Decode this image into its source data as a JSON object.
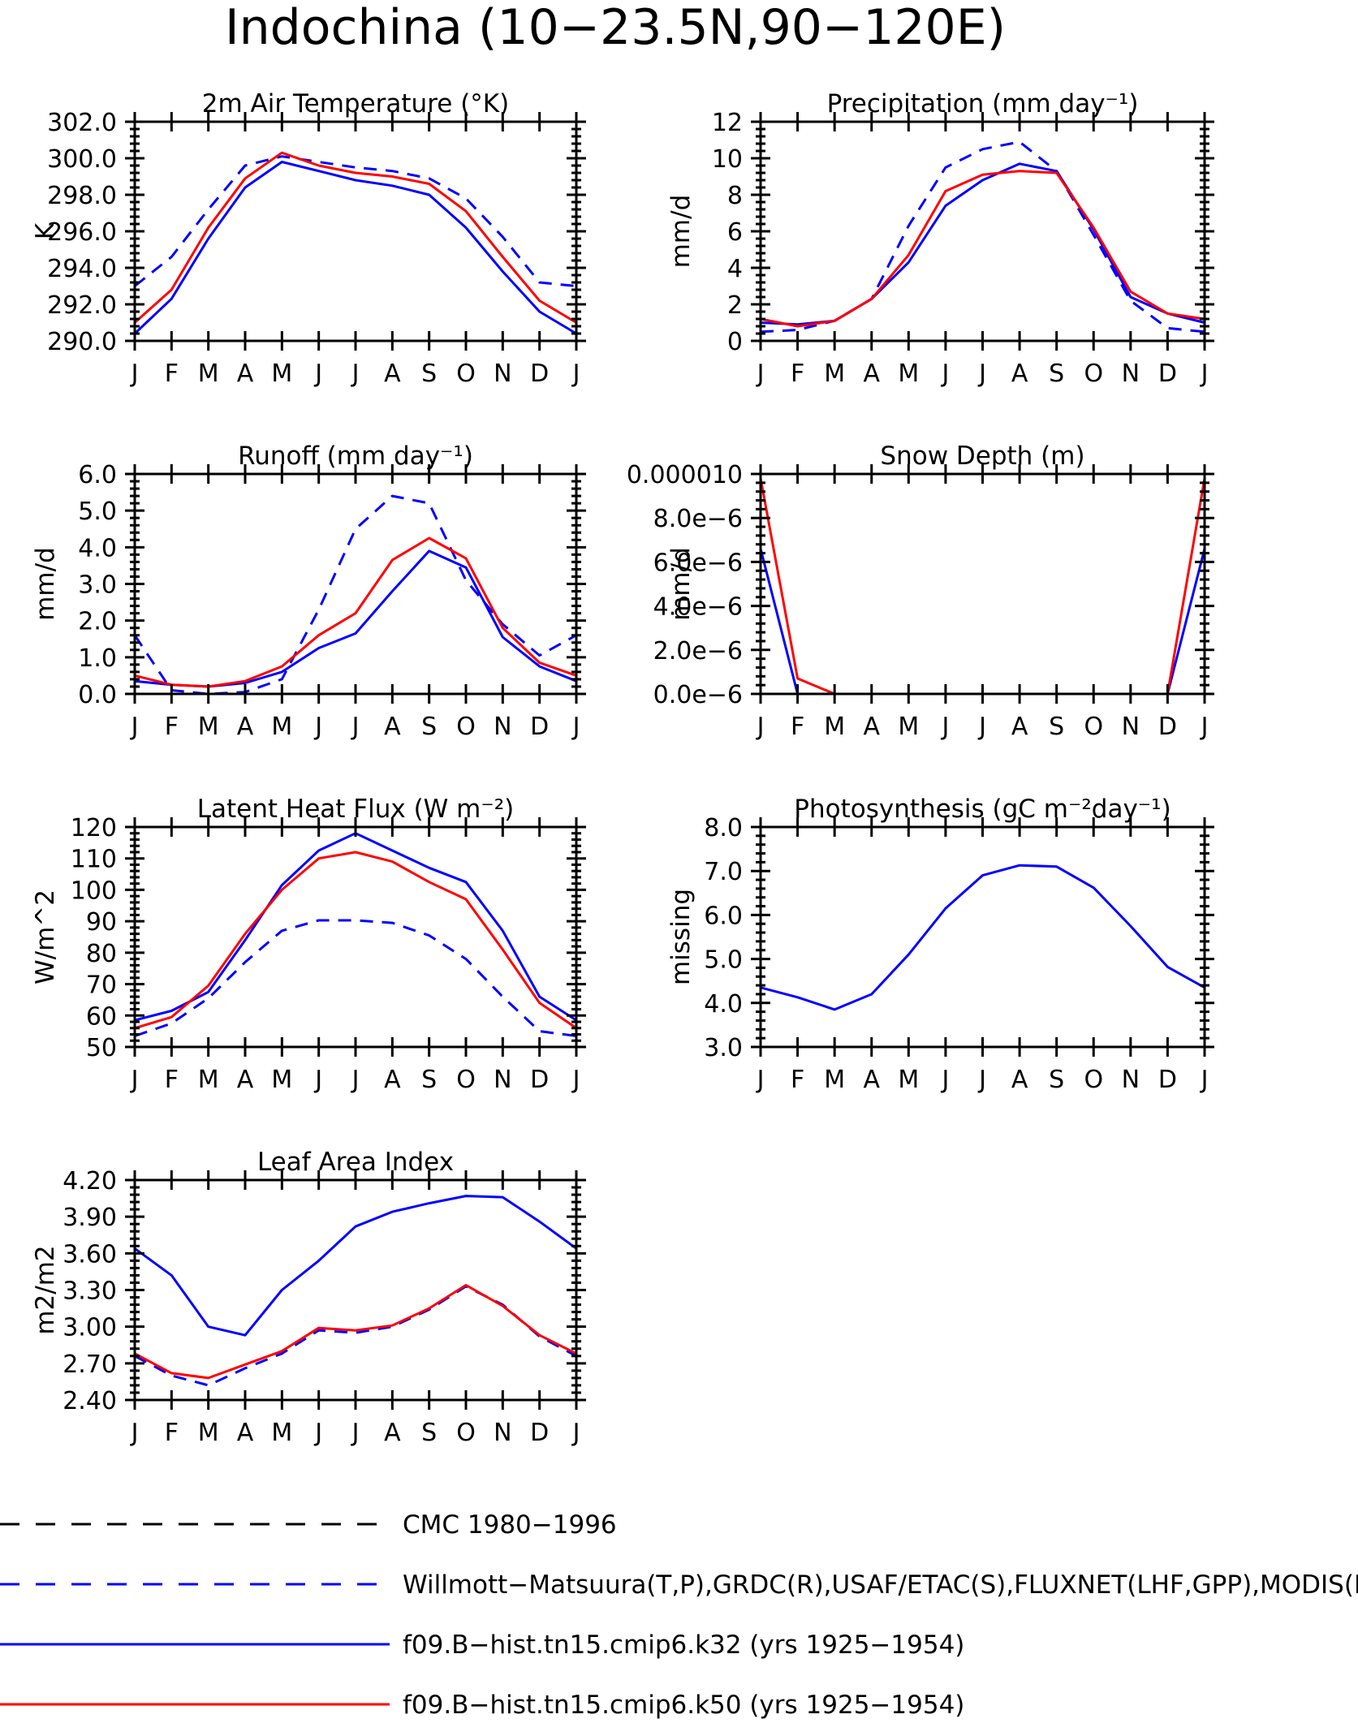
{
  "figure": {
    "title": "Indochina (10−23.5N,90−120E)"
  },
  "styles": {
    "series_colors": {
      "obs": "#0000ff",
      "k32": "#0000ff",
      "k50": "#ff0000",
      "cmc": "#000000"
    },
    "series_dash": {
      "obs": "dash",
      "k32": "solid",
      "k50": "solid",
      "cmc": "dash"
    }
  },
  "legend": {
    "items": [
      {
        "key": "cmc",
        "label": "CMC 1980−1996"
      },
      {
        "key": "obs",
        "label": "Willmott−Matsuura(T,P),GRDC(R),USAF/ETAC(S),FLUXNET(LHF,GPP),MODIS(L"
      },
      {
        "key": "k32",
        "label": "f09.B−hist.tn15.cmip6.k32 (yrs 1925−1954)"
      },
      {
        "key": "k50",
        "label": "f09.B−hist.tn15.cmip6.k50 (yrs 1925−1954)"
      }
    ]
  },
  "chart_data": [
    {
      "type": "line",
      "title": "2m Air Temperature (°K)",
      "ylabel": "K",
      "ylim": [
        290,
        302
      ],
      "yticks": [
        290,
        292,
        294,
        296,
        298,
        300,
        302
      ],
      "ytick_labels": [
        "290.0",
        "292.0",
        "294.0",
        "296.0",
        "298.0",
        "300.0",
        "302.0"
      ],
      "categories": [
        "J",
        "F",
        "M",
        "A",
        "M",
        "J",
        "J",
        "A",
        "S",
        "O",
        "N",
        "D",
        "J"
      ],
      "series": [
        {
          "key": "obs",
          "values": [
            293.0,
            294.6,
            297.2,
            299.6,
            300.1,
            299.8,
            299.5,
            299.3,
            298.9,
            297.8,
            295.7,
            293.2,
            293.0
          ]
        },
        {
          "key": "k32",
          "values": [
            290.4,
            292.3,
            295.6,
            298.4,
            299.8,
            299.3,
            298.8,
            298.5,
            298.0,
            296.2,
            293.8,
            291.6,
            290.4
          ]
        },
        {
          "key": "k50",
          "values": [
            291.0,
            292.8,
            296.2,
            298.9,
            300.3,
            299.6,
            299.2,
            299.0,
            298.6,
            297.1,
            294.6,
            292.2,
            291.0
          ]
        }
      ]
    },
    {
      "type": "line",
      "title": "Precipitation (mm day⁻¹)",
      "ylabel": "mm/d",
      "ylim": [
        0,
        12
      ],
      "yticks": [
        0,
        2,
        4,
        6,
        8,
        10,
        12
      ],
      "ytick_labels": [
        "0",
        "2",
        "4",
        "6",
        "8",
        "10",
        "12"
      ],
      "categories": [
        "J",
        "F",
        "M",
        "A",
        "M",
        "J",
        "J",
        "A",
        "S",
        "O",
        "N",
        "D",
        "J"
      ],
      "series": [
        {
          "key": "obs",
          "values": [
            0.5,
            0.6,
            1.1,
            2.3,
            6.3,
            9.5,
            10.5,
            10.9,
            9.3,
            5.8,
            2.2,
            0.7,
            0.5
          ]
        },
        {
          "key": "k32",
          "values": [
            1.0,
            0.9,
            1.1,
            2.3,
            4.3,
            7.4,
            8.8,
            9.7,
            9.3,
            6.1,
            2.4,
            1.5,
            1.0
          ]
        },
        {
          "key": "k50",
          "values": [
            1.2,
            0.8,
            1.1,
            2.3,
            4.7,
            8.2,
            9.1,
            9.3,
            9.2,
            6.2,
            2.7,
            1.5,
            1.2
          ]
        }
      ]
    },
    {
      "type": "line",
      "title": "Runoff (mm day⁻¹)",
      "ylabel": "mm/d",
      "ylim": [
        0,
        6
      ],
      "yticks": [
        0,
        1,
        2,
        3,
        4,
        5,
        6
      ],
      "ytick_labels": [
        "0.0",
        "1.0",
        "2.0",
        "3.0",
        "4.0",
        "5.0",
        "6.0"
      ],
      "categories": [
        "J",
        "F",
        "M",
        "A",
        "M",
        "J",
        "J",
        "A",
        "S",
        "O",
        "N",
        "D",
        "J"
      ],
      "series": [
        {
          "key": "obs",
          "values": [
            1.6,
            0.1,
            0.0,
            0.05,
            0.4,
            2.3,
            4.5,
            5.4,
            5.2,
            3.1,
            1.9,
            1.05,
            1.6
          ]
        },
        {
          "key": "k32",
          "values": [
            0.35,
            0.25,
            0.2,
            0.3,
            0.6,
            1.25,
            1.65,
            2.8,
            3.9,
            3.45,
            1.55,
            0.75,
            0.35
          ]
        },
        {
          "key": "k50",
          "values": [
            0.5,
            0.25,
            0.2,
            0.35,
            0.75,
            1.6,
            2.2,
            3.65,
            4.25,
            3.7,
            1.8,
            0.85,
            0.5
          ]
        }
      ]
    },
    {
      "type": "line",
      "title": "Snow Depth (m)",
      "ylabel": "mm/d",
      "ylim": [
        0,
        1e-05
      ],
      "yticks": [
        0,
        2e-06,
        4e-06,
        6e-06,
        8e-06,
        1e-05
      ],
      "ytick_labels": [
        "0.0e−6",
        "2.0e−6",
        "4.0e−6",
        "6.0e−6",
        "8.0e−6",
        "0.000010"
      ],
      "categories": [
        "J",
        "F",
        "M",
        "A",
        "M",
        "J",
        "J",
        "A",
        "S",
        "O",
        "N",
        "D",
        "J"
      ],
      "series": [
        {
          "key": "cmc",
          "values": [
            0,
            0,
            0,
            0,
            0,
            0,
            0,
            0,
            0,
            0,
            0,
            0,
            0
          ]
        },
        {
          "key": "k32",
          "values": [
            6.6e-06,
            0,
            0,
            0,
            0,
            0,
            0,
            0,
            0,
            0,
            0,
            0,
            6.6e-06
          ]
        },
        {
          "key": "k50",
          "values": [
            9.8e-06,
            7e-07,
            0,
            0,
            0,
            0,
            0,
            0,
            0,
            0,
            0,
            0,
            9.8e-06
          ]
        }
      ]
    },
    {
      "type": "line",
      "title": "Latent Heat Flux (W m⁻²)",
      "ylabel": "W/m^2",
      "ylim": [
        50,
        120
      ],
      "yticks": [
        50,
        60,
        70,
        80,
        90,
        100,
        110,
        120
      ],
      "ytick_labels": [
        "50",
        "60",
        "70",
        "80",
        "90",
        "100",
        "110",
        "120"
      ],
      "categories": [
        "J",
        "F",
        "M",
        "A",
        "M",
        "J",
        "J",
        "A",
        "S",
        "O",
        "N",
        "D",
        "J"
      ],
      "series": [
        {
          "key": "obs",
          "values": [
            53.5,
            57.5,
            65.5,
            77,
            87,
            90.3,
            90.3,
            89.5,
            85.5,
            78,
            66,
            55,
            53.5
          ]
        },
        {
          "key": "k32",
          "values": [
            58.5,
            61.5,
            67.5,
            84,
            101.5,
            112.5,
            118,
            112.5,
            107,
            102.5,
            87,
            66,
            58.5
          ]
        },
        {
          "key": "k50",
          "values": [
            56,
            59.5,
            69.5,
            86,
            100,
            110,
            112,
            109,
            102.5,
            97,
            81,
            64,
            56
          ]
        }
      ]
    },
    {
      "type": "line",
      "title": "Photosynthesis (gC m⁻²day⁻¹)",
      "ylabel": "missing",
      "ylim": [
        3,
        8
      ],
      "yticks": [
        3,
        4,
        5,
        6,
        7,
        8
      ],
      "ytick_labels": [
        "3.0",
        "4.0",
        "5.0",
        "6.0",
        "7.0",
        "8.0"
      ],
      "categories": [
        "J",
        "F",
        "M",
        "A",
        "M",
        "J",
        "J",
        "A",
        "S",
        "O",
        "N",
        "D",
        "J"
      ],
      "series": [
        {
          "key": "k32",
          "values": [
            4.35,
            4.13,
            3.85,
            4.2,
            5.1,
            6.15,
            6.9,
            7.13,
            7.1,
            6.62,
            5.75,
            4.82,
            4.35
          ]
        }
      ]
    },
    {
      "type": "line",
      "title": "Leaf Area Index",
      "ylabel": "m2/m2",
      "ylim": [
        2.4,
        4.2
      ],
      "yticks": [
        2.4,
        2.7,
        3.0,
        3.3,
        3.6,
        3.9,
        4.2
      ],
      "ytick_labels": [
        "2.40",
        "2.70",
        "3.00",
        "3.30",
        "3.60",
        "3.90",
        "4.20"
      ],
      "categories": [
        "J",
        "F",
        "M",
        "A",
        "M",
        "J",
        "J",
        "A",
        "S",
        "O",
        "N",
        "D",
        "J"
      ],
      "series": [
        {
          "key": "obs",
          "values": [
            2.76,
            2.6,
            2.52,
            2.66,
            2.78,
            2.97,
            2.95,
            3.0,
            3.14,
            3.33,
            3.18,
            2.92,
            2.76
          ]
        },
        {
          "key": "k32",
          "values": [
            3.64,
            3.42,
            3.0,
            2.93,
            3.3,
            3.54,
            3.82,
            3.94,
            4.01,
            4.07,
            4.06,
            3.86,
            3.64
          ]
        },
        {
          "key": "k50",
          "values": [
            2.78,
            2.62,
            2.58,
            2.69,
            2.8,
            2.99,
            2.97,
            3.01,
            3.15,
            3.34,
            3.17,
            2.93,
            2.78
          ]
        }
      ]
    }
  ]
}
